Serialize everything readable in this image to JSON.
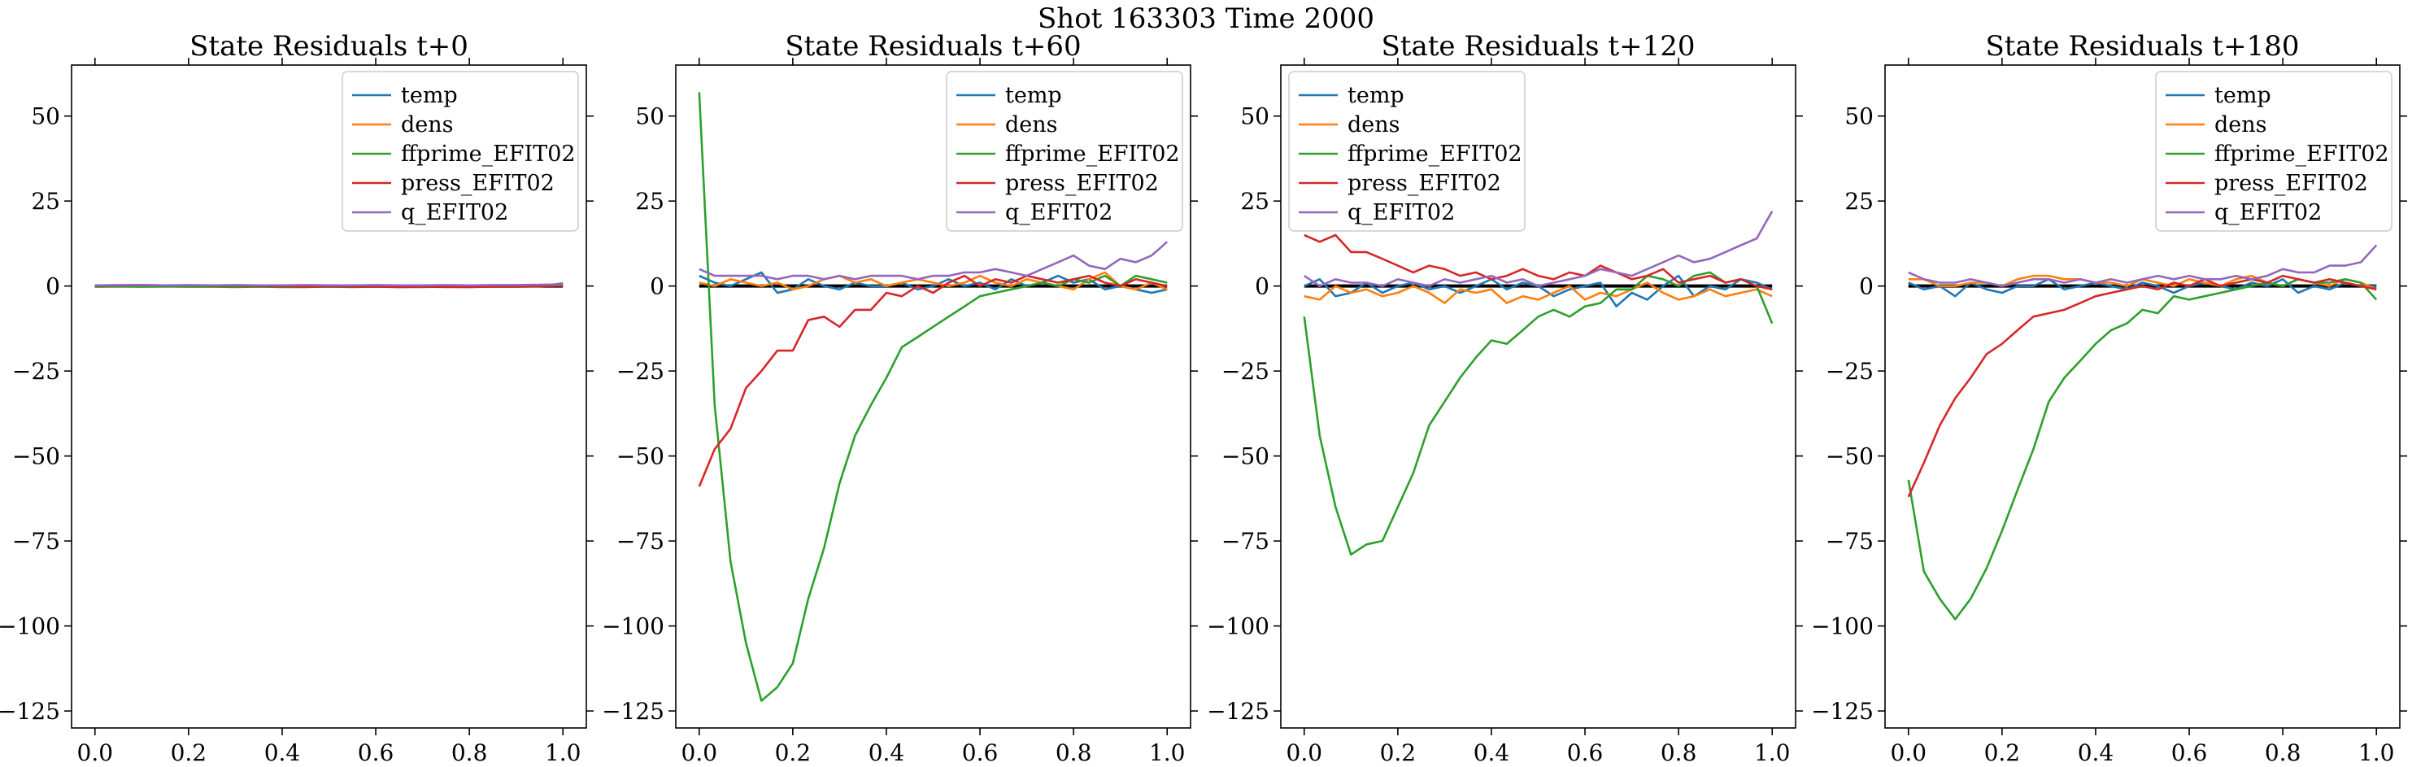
{
  "suptitle": "Shot 163303   Time 2000",
  "series_colors": {
    "temp": "#1f77b4",
    "dens": "#ff7f0e",
    "ffprime_EFIT02": "#2ca02c",
    "press_EFIT02": "#d62728",
    "q_EFIT02": "#9467bd"
  },
  "chart_data": [
    {
      "type": "line",
      "title": "State Residuals t+0",
      "xlim": [
        -0.05,
        1.05
      ],
      "ylim": [
        -130,
        65
      ],
      "xticks": [
        0.0,
        0.2,
        0.4,
        0.6,
        0.8,
        1.0
      ],
      "xtick_labels": [
        "0.0",
        "0.2",
        "0.4",
        "0.6",
        "0.8",
        "1.0"
      ],
      "yticks": [
        50,
        25,
        0,
        -25,
        -50,
        -75,
        -100,
        -125
      ],
      "ytick_labels": [
        "50",
        "25",
        "0",
        "−25",
        "−50",
        "−75",
        "−100",
        "−125"
      ],
      "legend_position": "upper right",
      "zero_line": true,
      "x": [
        0,
        0.05,
        0.1,
        0.15,
        0.2,
        0.25,
        0.3,
        0.35,
        0.4,
        0.45,
        0.5,
        0.55,
        0.6,
        0.65,
        0.7,
        0.75,
        0.8,
        0.85,
        0.9,
        0.95,
        1.0
      ],
      "series": [
        {
          "name": "temp",
          "values": [
            0.1,
            0.2,
            0.1,
            0.2,
            0.1,
            0.0,
            0.1,
            0.0,
            0.0,
            0.1,
            0.0,
            0.0,
            0.1,
            0.0,
            0.0,
            0.1,
            0.0,
            0.0,
            0.1,
            0.1,
            0.3
          ]
        },
        {
          "name": "dens",
          "values": [
            0.0,
            0.1,
            0.0,
            0.1,
            0.0,
            0.0,
            0.0,
            -0.1,
            0.0,
            0.0,
            0.0,
            -0.1,
            0.0,
            0.0,
            -0.1,
            0.0,
            0.0,
            -0.1,
            0.0,
            0.0,
            0.1
          ]
        },
        {
          "name": "ffprime_EFIT02",
          "values": [
            -0.2,
            -0.1,
            -0.2,
            -0.1,
            -0.2,
            -0.2,
            -0.3,
            -0.2,
            -0.3,
            -0.3,
            -0.2,
            -0.3,
            -0.2,
            -0.3,
            -0.3,
            -0.2,
            -0.3,
            -0.2,
            -0.2,
            -0.1,
            0.8
          ]
        },
        {
          "name": "press_EFIT02",
          "values": [
            0.1,
            0.2,
            0.3,
            0.2,
            0.2,
            0.1,
            0.1,
            0.0,
            -0.1,
            -0.2,
            -0.1,
            -0.2,
            -0.2,
            -0.3,
            -0.2,
            -0.3,
            -0.3,
            -0.2,
            -0.2,
            -0.1,
            0.2
          ]
        },
        {
          "name": "q_EFIT02",
          "values": [
            0.2,
            0.3,
            0.3,
            0.2,
            0.3,
            0.2,
            0.3,
            0.2,
            0.2,
            0.3,
            0.2,
            0.2,
            0.3,
            0.2,
            0.2,
            0.3,
            0.2,
            0.3,
            0.3,
            0.4,
            0.5
          ]
        }
      ]
    },
    {
      "type": "line",
      "title": "State Residuals t+60",
      "xlim": [
        -0.05,
        1.05
      ],
      "ylim": [
        -130,
        65
      ],
      "xticks": [
        0.0,
        0.2,
        0.4,
        0.6,
        0.8,
        1.0
      ],
      "xtick_labels": [
        "0.0",
        "0.2",
        "0.4",
        "0.6",
        "0.8",
        "1.0"
      ],
      "yticks": [
        50,
        25,
        0,
        -25,
        -50,
        -75,
        -100,
        -125
      ],
      "ytick_labels": [
        "50",
        "25",
        "0",
        "−25",
        "−50",
        "−75",
        "−100",
        "−125"
      ],
      "legend_position": "upper right",
      "zero_line": true,
      "x": [
        0,
        0.033,
        0.067,
        0.1,
        0.133,
        0.167,
        0.2,
        0.233,
        0.267,
        0.3,
        0.333,
        0.367,
        0.4,
        0.433,
        0.467,
        0.5,
        0.533,
        0.567,
        0.6,
        0.633,
        0.667,
        0.7,
        0.733,
        0.767,
        0.8,
        0.833,
        0.867,
        0.9,
        0.933,
        0.967,
        1.0
      ],
      "series": [
        {
          "name": "temp",
          "values": [
            3,
            1,
            0,
            2,
            4,
            -2,
            -1,
            2,
            0,
            -1,
            1,
            0,
            0,
            1,
            -1,
            0,
            2,
            0,
            1,
            -1,
            2,
            0,
            1,
            3,
            1,
            2,
            -1,
            0,
            -1,
            -2,
            -1
          ]
        },
        {
          "name": "dens",
          "values": [
            1,
            0,
            2,
            1,
            0,
            1,
            -1,
            0,
            2,
            3,
            1,
            2,
            0,
            1,
            2,
            1,
            0,
            1,
            3,
            1,
            0,
            2,
            1,
            0,
            -1,
            2,
            4,
            0,
            -1,
            1,
            -1
          ]
        },
        {
          "name": "ffprime_EFIT02",
          "values": [
            57,
            -35,
            -81,
            -105,
            -122,
            -118,
            -111,
            -92,
            -77,
            -58,
            -44,
            -35,
            -27,
            -18,
            -15,
            -12,
            -9,
            -6,
            -3,
            -2,
            -1,
            0,
            1,
            0,
            2,
            1,
            3,
            0,
            3,
            2,
            1
          ]
        },
        {
          "name": "press_EFIT02",
          "values": [
            -59,
            -48,
            -42,
            -30,
            -25,
            -19,
            -19,
            -10,
            -9,
            -12,
            -7,
            -7,
            -2,
            -3,
            0,
            -2,
            1,
            3,
            0,
            2,
            1,
            3,
            2,
            1,
            2,
            3,
            1,
            0,
            2,
            1,
            0
          ]
        },
        {
          "name": "q_EFIT02",
          "values": [
            5,
            3,
            3,
            3,
            3,
            2,
            3,
            3,
            2,
            3,
            2,
            3,
            3,
            3,
            2,
            3,
            3,
            4,
            4,
            5,
            4,
            3,
            5,
            7,
            9,
            6,
            5,
            8,
            7,
            9,
            13
          ]
        }
      ]
    },
    {
      "type": "line",
      "title": "State Residuals t+120",
      "xlim": [
        -0.05,
        1.05
      ],
      "ylim": [
        -130,
        65
      ],
      "xticks": [
        0.0,
        0.2,
        0.4,
        0.6,
        0.8,
        1.0
      ],
      "xtick_labels": [
        "0.0",
        "0.2",
        "0.4",
        "0.6",
        "0.8",
        "1.0"
      ],
      "yticks": [
        50,
        25,
        0,
        -25,
        -50,
        -75,
        -100,
        -125
      ],
      "ytick_labels": [
        "50",
        "25",
        "0",
        "−25",
        "−50",
        "−75",
        "−100",
        "−125"
      ],
      "legend_position": "upper left",
      "zero_line": true,
      "x": [
        0,
        0.033,
        0.067,
        0.1,
        0.133,
        0.167,
        0.2,
        0.233,
        0.267,
        0.3,
        0.333,
        0.367,
        0.4,
        0.433,
        0.467,
        0.5,
        0.533,
        0.567,
        0.6,
        0.633,
        0.667,
        0.7,
        0.733,
        0.767,
        0.8,
        0.833,
        0.867,
        0.9,
        0.933,
        0.967,
        1.0
      ],
      "series": [
        {
          "name": "temp",
          "values": [
            0,
            2,
            -3,
            -2,
            1,
            -2,
            0,
            1,
            -1,
            0,
            -2,
            0,
            2,
            -1,
            1,
            0,
            -3,
            -1,
            0,
            1,
            -6,
            -2,
            -4,
            0,
            3,
            -3,
            0,
            -1,
            2,
            1,
            -1
          ]
        },
        {
          "name": "dens",
          "values": [
            -3,
            -4,
            0,
            -2,
            -1,
            -3,
            -2,
            0,
            -2,
            -5,
            -1,
            -2,
            -1,
            -5,
            -3,
            -4,
            -2,
            0,
            -4,
            -2,
            -3,
            -1,
            1,
            -2,
            -4,
            -3,
            -1,
            -3,
            -2,
            -1,
            -3
          ]
        },
        {
          "name": "ffprime_EFIT02",
          "values": [
            -9,
            -44,
            -65,
            -79,
            -76,
            -75,
            -65,
            -55,
            -41,
            -34,
            -27,
            -21,
            -16,
            -17,
            -13,
            -9,
            -7,
            -9,
            -6,
            -5,
            -1,
            -1,
            3,
            2,
            0,
            3,
            4,
            1,
            2,
            0,
            -11
          ]
        },
        {
          "name": "press_EFIT02",
          "values": [
            15,
            13,
            15,
            10,
            10,
            8,
            6,
            4,
            6,
            5,
            3,
            4,
            2,
            3,
            5,
            3,
            2,
            4,
            3,
            6,
            4,
            2,
            3,
            5,
            1,
            2,
            3,
            1,
            2,
            0,
            -1
          ]
        },
        {
          "name": "q_EFIT02",
          "values": [
            3,
            0,
            2,
            1,
            1,
            0,
            2,
            1,
            0,
            2,
            1,
            2,
            3,
            1,
            2,
            0,
            1,
            2,
            3,
            5,
            4,
            3,
            5,
            7,
            9,
            7,
            8,
            10,
            12,
            14,
            22
          ]
        }
      ]
    },
    {
      "type": "line",
      "title": "State Residuals t+180",
      "xlim": [
        -0.05,
        1.05
      ],
      "ylim": [
        -130,
        65
      ],
      "xticks": [
        0.0,
        0.2,
        0.4,
        0.6,
        0.8,
        1.0
      ],
      "xtick_labels": [
        "0.0",
        "0.2",
        "0.4",
        "0.6",
        "0.8",
        "1.0"
      ],
      "yticks": [
        50,
        25,
        0,
        -25,
        -50,
        -75,
        -100,
        -125
      ],
      "ytick_labels": [
        "50",
        "25",
        "0",
        "−25",
        "−50",
        "−75",
        "−100",
        "−125"
      ],
      "legend_position": "upper right",
      "zero_line": true,
      "x": [
        0,
        0.033,
        0.067,
        0.1,
        0.133,
        0.167,
        0.2,
        0.233,
        0.267,
        0.3,
        0.333,
        0.367,
        0.4,
        0.433,
        0.467,
        0.5,
        0.533,
        0.567,
        0.6,
        0.633,
        0.667,
        0.7,
        0.733,
        0.767,
        0.8,
        0.833,
        0.867,
        0.9,
        0.933,
        0.967,
        1.0
      ],
      "series": [
        {
          "name": "temp",
          "values": [
            1,
            -1,
            0,
            -3,
            1,
            -1,
            -2,
            0,
            0,
            2,
            -1,
            0,
            1,
            0,
            -1,
            1,
            0,
            -2,
            0,
            1,
            0,
            -1,
            1,
            0,
            2,
            -2,
            0,
            -1,
            1,
            0,
            0
          ]
        },
        {
          "name": "dens",
          "values": [
            2,
            2,
            0,
            0,
            1,
            1,
            0,
            2,
            3,
            3,
            2,
            2,
            1,
            1,
            0,
            2,
            1,
            0,
            2,
            1,
            0,
            2,
            3,
            1,
            0,
            2,
            1,
            0,
            2,
            1,
            -1
          ]
        },
        {
          "name": "ffprime_EFIT02",
          "values": [
            -57,
            -84,
            -92,
            -98,
            -92,
            -83,
            -72,
            -60,
            -48,
            -34,
            -27,
            -22,
            -17,
            -13,
            -11,
            -7,
            -8,
            -3,
            -4,
            -3,
            -2,
            -1,
            0,
            1,
            0,
            2,
            1,
            1,
            2,
            1,
            -4
          ]
        },
        {
          "name": "press_EFIT02",
          "values": [
            -62,
            -52,
            -41,
            -33,
            -27,
            -20,
            -17,
            -13,
            -9,
            -8,
            -7,
            -5,
            -3,
            -2,
            -1,
            0,
            -1,
            1,
            0,
            2,
            0,
            1,
            2,
            1,
            3,
            2,
            1,
            2,
            1,
            0,
            -1
          ]
        },
        {
          "name": "q_EFIT02",
          "values": [
            4,
            2,
            1,
            1,
            2,
            1,
            0,
            1,
            2,
            2,
            1,
            2,
            1,
            2,
            1,
            2,
            3,
            2,
            3,
            2,
            2,
            3,
            2,
            3,
            5,
            4,
            4,
            6,
            6,
            7,
            12
          ]
        }
      ]
    }
  ]
}
